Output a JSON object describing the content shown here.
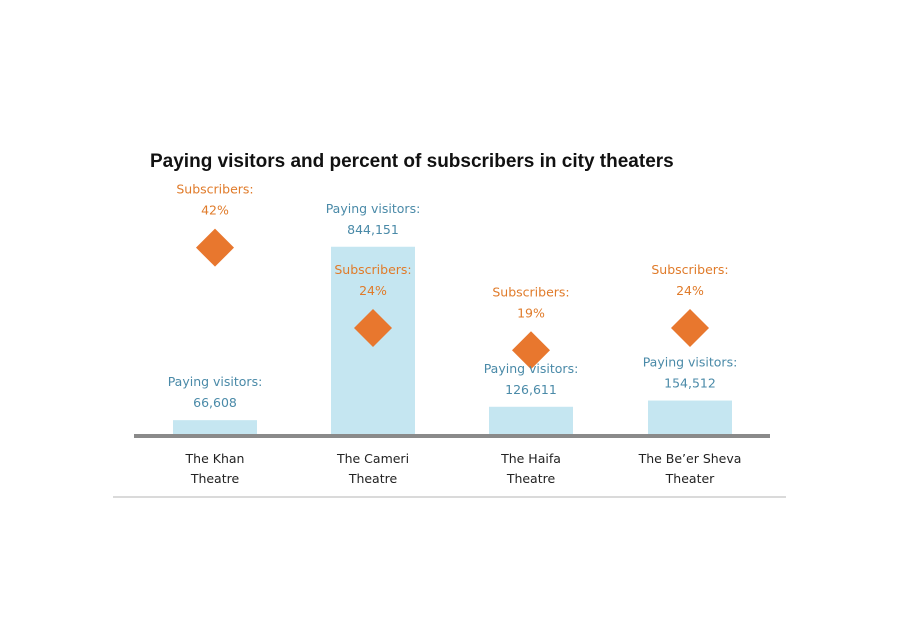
{
  "chart_data": {
    "type": "bar",
    "title": "Paying visitors and percent of subscribers in city theaters",
    "categories": [
      [
        "The Khan",
        "Theatre"
      ],
      [
        "The Cameri",
        "Theatre"
      ],
      [
        "The Haifa",
        "Theatre"
      ],
      [
        "The Be’er  Sheva",
        "Theater"
      ]
    ],
    "series": [
      {
        "name": "Paying visitors",
        "type": "bar",
        "label_prefix": "Paying visitors:",
        "values": [
          66608,
          844151,
          126611,
          154512
        ],
        "labels": [
          "66,608",
          "844,151",
          "126,611",
          "154,512"
        ],
        "color": "#c5e6f1",
        "label_color": "#4a8aa8",
        "ylim": [
          0,
          1000000
        ]
      },
      {
        "name": "Subscribers",
        "type": "scatter",
        "marker": "diamond",
        "label_prefix": "Subscribers:",
        "values": [
          42,
          24,
          19,
          24
        ],
        "labels": [
          "42%",
          "24%",
          "19%",
          "24%"
        ],
        "color": "#e8772e",
        "label_color": "#e07b2a",
        "ylim": [
          0,
          50
        ]
      }
    ],
    "xlabel": "",
    "ylabel": "",
    "grid": false,
    "legend": "none"
  }
}
